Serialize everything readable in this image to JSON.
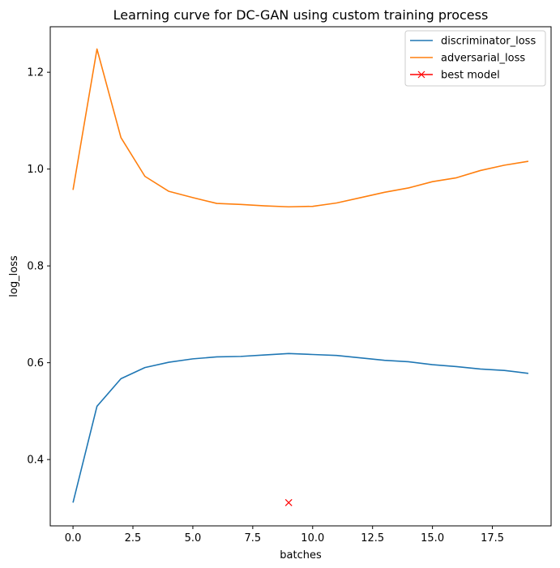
{
  "chart_data": {
    "type": "line",
    "title": "Learning curve for DC-GAN using custom training process",
    "xlabel": "batches",
    "ylabel": "log_loss",
    "xlim": [
      -0.95,
      19.95
    ],
    "ylim": [
      0.263,
      1.294
    ],
    "xticks": [
      0.0,
      2.5,
      5.0,
      7.5,
      10.0,
      12.5,
      15.0,
      17.5
    ],
    "xtick_labels": [
      "0.0",
      "2.5",
      "5.0",
      "7.5",
      "10.0",
      "12.5",
      "15.0",
      "17.5"
    ],
    "yticks": [
      0.4,
      0.6,
      0.8,
      1.0,
      1.2
    ],
    "ytick_labels": [
      "0.4",
      "0.6",
      "0.8",
      "1.0",
      "1.2"
    ],
    "grid": false,
    "legend_position": "top-right",
    "x": [
      0,
      1,
      2,
      3,
      4,
      5,
      6,
      7,
      8,
      9,
      10,
      11,
      12,
      13,
      14,
      15,
      16,
      17,
      18,
      19
    ],
    "series": [
      {
        "name": "discriminator_loss",
        "color": "#1f77b4",
        "style": "line",
        "values": [
          0.311,
          0.51,
          0.567,
          0.59,
          0.601,
          0.608,
          0.612,
          0.613,
          0.616,
          0.619,
          0.617,
          0.615,
          0.61,
          0.605,
          0.602,
          0.596,
          0.592,
          0.587,
          0.584,
          0.578
        ]
      },
      {
        "name": "adversarial_loss",
        "color": "#ff7f0e",
        "style": "line",
        "values": [
          0.957,
          1.248,
          1.065,
          0.985,
          0.954,
          0.941,
          0.929,
          0.927,
          0.924,
          0.922,
          0.923,
          0.93,
          0.941,
          0.952,
          0.961,
          0.974,
          0.982,
          0.997,
          1.008,
          1.016
        ]
      },
      {
        "name": "best model",
        "color": "#ff0000",
        "style": "marker-x",
        "points": [
          {
            "x": 9,
            "y": 0.311
          }
        ]
      }
    ]
  }
}
